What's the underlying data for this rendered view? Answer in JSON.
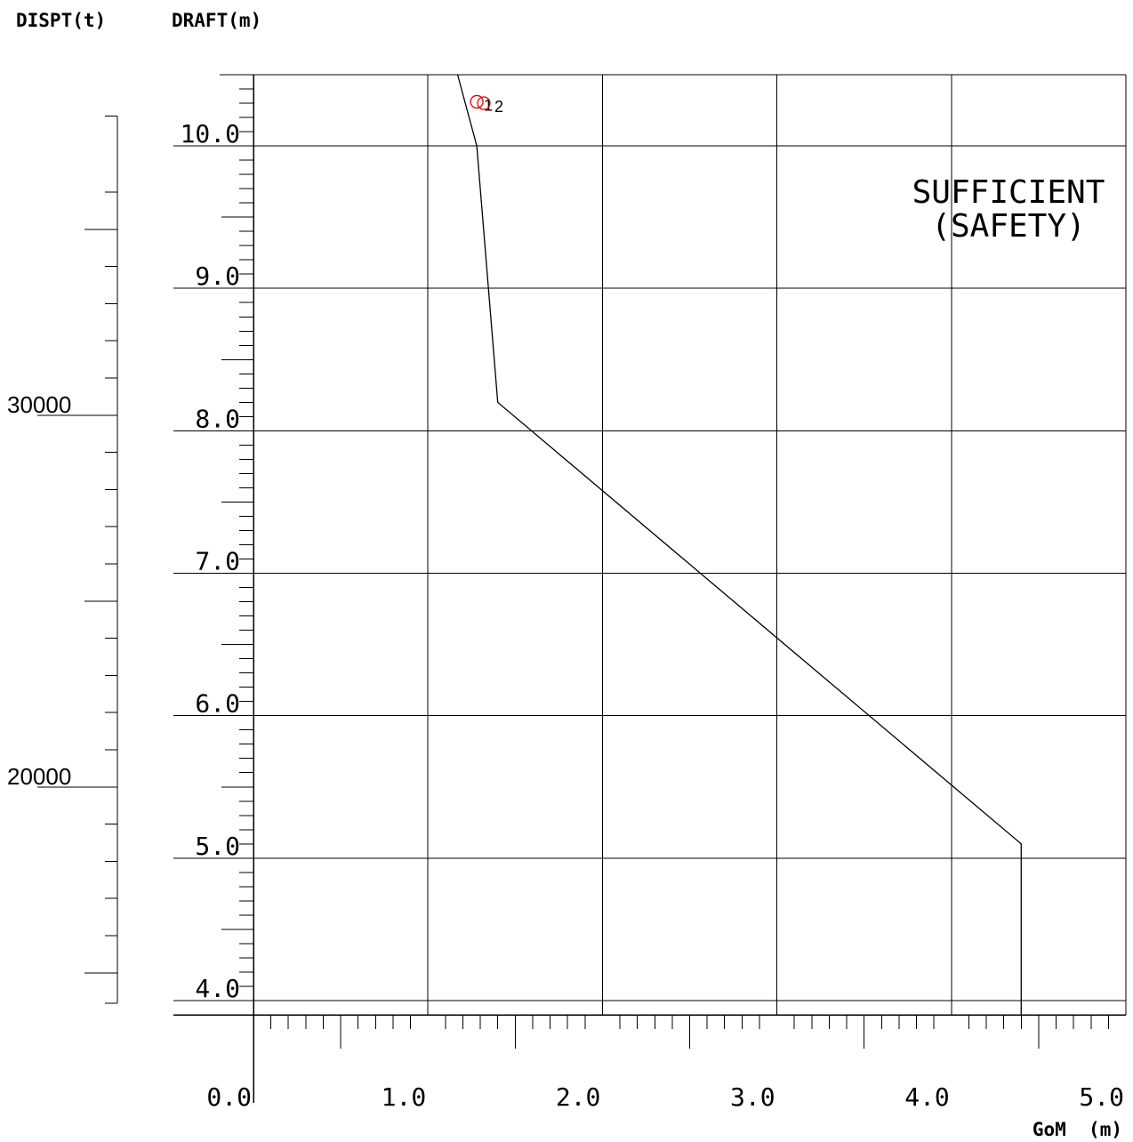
{
  "chart_data": {
    "type": "line",
    "title": "",
    "xlabel": "GoM  (m)",
    "ylabel_draft": "DRAFT(m)",
    "ylabel_disp": "DISPT(t)",
    "xlim": [
      0.0,
      5.0
    ],
    "ylim": [
      3.9,
      10.5
    ],
    "x_ticks": [
      0.0,
      1.0,
      2.0,
      3.0,
      4.0,
      5.0
    ],
    "x_tick_labels": [
      "0.0",
      "1.0",
      "2.0",
      "3.0",
      "4.0",
      "5.0"
    ],
    "y_ticks": [
      4.0,
      5.0,
      6.0,
      7.0,
      8.0,
      9.0,
      10.0
    ],
    "y_tick_labels": [
      "4.0",
      "5.0",
      "6.0",
      "7.0",
      "8.0",
      "9.0",
      "10.0"
    ],
    "grid": true,
    "disp_scale": {
      "labeled_ticks": [
        {
          "value": 30000,
          "label": "30000",
          "draft": 8.11
        },
        {
          "value": 20000,
          "label": "20000",
          "draft": 5.5
        }
      ],
      "range_draft": [
        3.98,
        10.21
      ]
    },
    "series": [
      {
        "x": [
          1.17,
          1.28,
          1.4,
          4.4,
          4.4
        ],
        "y": [
          10.5,
          10.0,
          8.2,
          5.1,
          3.9
        ]
      }
    ],
    "points": [
      {
        "label": "1",
        "x": 1.28,
        "y": 10.31
      },
      {
        "label": "2",
        "x": 1.32,
        "y": 10.3
      }
    ],
    "annotation": {
      "line1": "SUFFICIENT",
      "line2": "(SAFETY)"
    },
    "colors": {
      "axis": "#000000",
      "grid": "#000000",
      "curve": "#000000",
      "point": "#e00000"
    }
  }
}
